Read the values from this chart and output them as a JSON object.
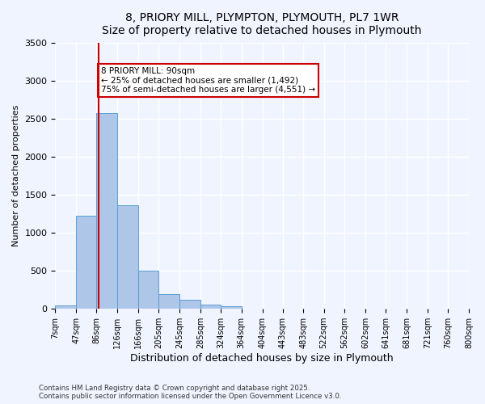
{
  "title": "8, PRIORY MILL, PLYMPTON, PLYMOUTH, PL7 1WR",
  "subtitle": "Size of property relative to detached houses in Plymouth",
  "xlabel": "Distribution of detached houses by size in Plymouth",
  "ylabel": "Number of detached properties",
  "bins": [
    "7sqm",
    "47sqm",
    "86sqm",
    "126sqm",
    "166sqm",
    "205sqm",
    "245sqm",
    "285sqm",
    "324sqm",
    "364sqm",
    "404sqm",
    "443sqm",
    "483sqm",
    "522sqm",
    "562sqm",
    "602sqm",
    "641sqm",
    "681sqm",
    "721sqm",
    "760sqm",
    "800sqm"
  ],
  "bin_edges": [
    7,
    47,
    86,
    126,
    166,
    205,
    245,
    285,
    324,
    364,
    404,
    443,
    483,
    522,
    562,
    602,
    641,
    681,
    721,
    760,
    800
  ],
  "bar_values": [
    50,
    1230,
    2580,
    1360,
    500,
    195,
    115,
    55,
    30,
    5,
    2,
    1,
    0,
    0,
    0,
    0,
    0,
    0,
    0,
    0
  ],
  "bar_color": "#aec6e8",
  "bar_edgecolor": "#5a9fd4",
  "property_sqm": 90,
  "property_bin_index": 2,
  "vline_color": "#cc0000",
  "annotation_title": "8 PRIORY MILL: 90sqm",
  "annotation_line1": "← 25% of detached houses are smaller (1,492)",
  "annotation_line2": "75% of semi-detached houses are larger (4,551) →",
  "ylim": [
    0,
    3500
  ],
  "yticks": [
    0,
    500,
    1000,
    1500,
    2000,
    2500,
    3000,
    3500
  ],
  "background_color": "#f0f4ff",
  "plot_bg_color": "#f0f4ff",
  "grid_color": "#ffffff",
  "footer_line1": "Contains HM Land Registry data © Crown copyright and database right 2025.",
  "footer_line2": "Contains public sector information licensed under the Open Government Licence v3.0."
}
